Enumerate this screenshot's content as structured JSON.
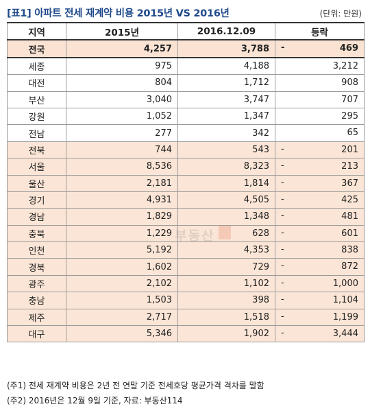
{
  "header": {
    "title": "[표1] 아파트 전세 재계약 비용 2015년 VS 2016년",
    "unit": "(단위: 만원)"
  },
  "table": {
    "columns": [
      "지역",
      "2015년",
      "2016.12.09",
      "등락"
    ],
    "total": {
      "region": "전국",
      "y2015": "4,257",
      "y2016": "3,788",
      "sign": "-",
      "change": "469"
    },
    "rows": [
      {
        "region": "세종",
        "y2015": "975",
        "y2016": "4,188",
        "sign": "",
        "change": "3,212"
      },
      {
        "region": "대전",
        "y2015": "804",
        "y2016": "1,712",
        "sign": "",
        "change": "908"
      },
      {
        "region": "부산",
        "y2015": "3,040",
        "y2016": "3,747",
        "sign": "",
        "change": "707"
      },
      {
        "region": "강원",
        "y2015": "1,052",
        "y2016": "1,347",
        "sign": "",
        "change": "295"
      },
      {
        "region": "전남",
        "y2015": "277",
        "y2016": "342",
        "sign": "",
        "change": "65"
      },
      {
        "region": "전북",
        "y2015": "744",
        "y2016": "543",
        "sign": "-",
        "change": "201"
      },
      {
        "region": "서울",
        "y2015": "8,536",
        "y2016": "8,323",
        "sign": "-",
        "change": "213"
      },
      {
        "region": "울산",
        "y2015": "2,181",
        "y2016": "1,814",
        "sign": "-",
        "change": "367"
      },
      {
        "region": "경기",
        "y2015": "4,931",
        "y2016": "4,505",
        "sign": "-",
        "change": "425"
      },
      {
        "region": "경남",
        "y2015": "1,829",
        "y2016": "1,348",
        "sign": "-",
        "change": "481"
      },
      {
        "region": "충북",
        "y2015": "1,229",
        "y2016": "628",
        "sign": "-",
        "change": "601"
      },
      {
        "region": "인천",
        "y2015": "5,192",
        "y2016": "4,353",
        "sign": "-",
        "change": "838"
      },
      {
        "region": "경북",
        "y2015": "1,602",
        "y2016": "729",
        "sign": "-",
        "change": "872"
      },
      {
        "region": "광주",
        "y2015": "2,102",
        "y2016": "1,102",
        "sign": "-",
        "change": "1,000"
      },
      {
        "region": "충남",
        "y2015": "1,503",
        "y2016": "398",
        "sign": "-",
        "change": "1,104"
      },
      {
        "region": "제주",
        "y2015": "2,717",
        "y2016": "1,518",
        "sign": "-",
        "change": "1,199"
      },
      {
        "region": "대구",
        "y2015": "5,346",
        "y2016": "1,902",
        "sign": "-",
        "change": "3,444"
      }
    ]
  },
  "watermark": "부동산",
  "notes": [
    "(주1) 전세 재계약 비용은 2년 전 연말 기준 전세호당 평균가격 격차를 말함",
    "(주2) 2016년은 12월 9일 기준, 자료: 부동산114"
  ],
  "colors": {
    "title": "#1f4a8a",
    "decline_row_bg": "#fbe5d6",
    "total_row_bg": "#fbe3d3"
  }
}
